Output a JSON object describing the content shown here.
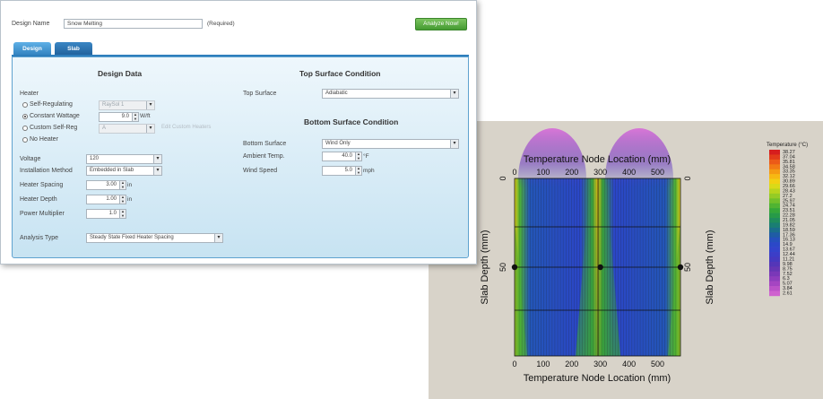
{
  "design_name": {
    "label": "Design Name",
    "value": "Snow Melting",
    "required": "(Required)"
  },
  "analyze_button": "Analyze Now!",
  "tabs": [
    "Design",
    "Slab"
  ],
  "design_data": {
    "title": "Design Data",
    "heater_label": "Heater",
    "options": [
      {
        "label": "Self-Regulating",
        "value": "RaySol 1",
        "selected": false
      },
      {
        "label": "Constant Wattage",
        "value": "9.0",
        "unit": "W/ft",
        "selected": true
      },
      {
        "label": "Custom Self-Reg",
        "value": "A",
        "link": "Edit Custom Heaters",
        "selected": false
      },
      {
        "label": "No Heater",
        "selected": false
      }
    ],
    "voltage": {
      "label": "Voltage",
      "value": "120"
    },
    "installation_method": {
      "label": "Installation Method",
      "value": "Embedded in Slab"
    },
    "heater_spacing": {
      "label": "Heater Spacing",
      "value": "3.00",
      "unit": "in"
    },
    "heater_depth": {
      "label": "Heater Depth",
      "value": "1.00",
      "unit": "in"
    },
    "power_multiplier": {
      "label": "Power Multiplier",
      "value": "1.0"
    },
    "analysis_type": {
      "label": "Analysis Type",
      "value": "Steady State Fixed Heater Spacing"
    }
  },
  "top_surface": {
    "title": "Top Surface Condition",
    "label": "Top Surface",
    "value": "Adiabatic"
  },
  "bottom_surface": {
    "title": "Bottom Surface Condition",
    "surface_label": "Bottom Surface",
    "surface_value": "Wind Only",
    "ambient_label": "Ambient Temp.",
    "ambient_value": "40.0",
    "ambient_unit": "°F",
    "wind_label": "Wind Speed",
    "wind_value": "5.0",
    "wind_unit": "mph"
  },
  "contour_plot": {
    "title": "Temperature Node Location (mm)",
    "xlabel": "Temperature Node Location (mm)",
    "ylabel": "Slab Depth (mm)",
    "x_ticks": [
      "0",
      "100",
      "200",
      "300",
      "400",
      "500"
    ],
    "y_ticks": [
      "0",
      "50"
    ],
    "legend_title": "Temperature (°C)",
    "legend_values": [
      "38.27",
      "37.04",
      "35.81",
      "34.58",
      "33.35",
      "32.12",
      "30.89",
      "29.66",
      "28.43",
      "27.2",
      "25.97",
      "24.74",
      "23.51",
      "22.28",
      "21.05",
      "19.82",
      "18.59",
      "17.36",
      "16.13",
      "14.9",
      "13.67",
      "12.44",
      "11.21",
      "9.98",
      "8.75",
      "7.52",
      "6.3",
      "5.07",
      "3.84",
      "2.61"
    ],
    "legend_colors": [
      "#d61e1e",
      "#e23b1a",
      "#ec5a18",
      "#f27a15",
      "#f59a12",
      "#f7b812",
      "#f2d012",
      "#dada18",
      "#b8d41e",
      "#95cb25",
      "#72c02b",
      "#50b432",
      "#35a739",
      "#279a48",
      "#1f8c5c",
      "#1a7e73",
      "#1a6d8c",
      "#1f5ca5",
      "#2550bd",
      "#2b48c8",
      "#3343cc",
      "#3b3ec8",
      "#4539c0",
      "#5436b8",
      "#6636b4",
      "#7a38b8",
      "#8e3dbd",
      "#a545c2",
      "#bb52c8",
      "#cf62cf"
    ],
    "heater_markers_x": [
      0,
      300,
      580
    ]
  }
}
